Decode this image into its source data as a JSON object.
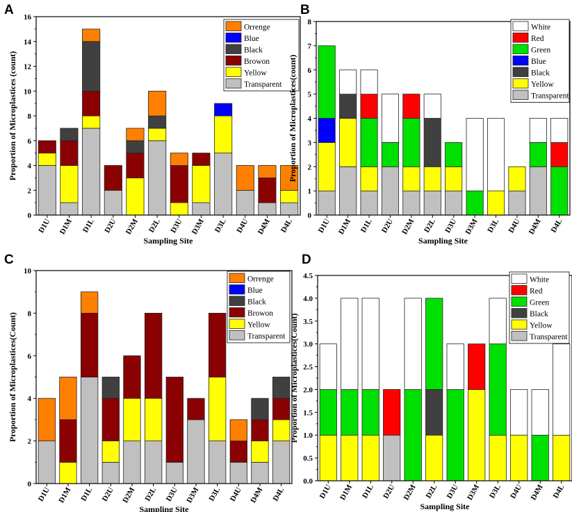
{
  "chart_data": [
    {
      "panel": "A",
      "type": "bar",
      "stacked": true,
      "title": "",
      "xlabel": "Sampling Site",
      "ylabel": "Proportion of Microplastices (count)",
      "ylim": [
        0,
        16
      ],
      "yticks": [
        "0",
        "2",
        "4",
        "6",
        "8",
        "10",
        "12",
        "14",
        "16"
      ],
      "categories": [
        "D1U",
        "D1M",
        "D1L",
        "D2U",
        "D2M",
        "D2L",
        "D3U",
        "D3M",
        "D3L",
        "D4U",
        "D4M",
        "D4L"
      ],
      "legend_position": "top-right",
      "series": [
        {
          "name": "Transparent",
          "color": "#c0c0c0",
          "values": [
            4,
            1,
            7,
            2,
            0,
            6,
            0,
            1,
            5,
            2,
            1,
            1
          ]
        },
        {
          "name": "Yellow",
          "color": "#ffff00",
          "values": [
            1,
            3,
            1,
            0,
            3,
            1,
            1,
            3,
            3,
            0,
            0,
            1
          ]
        },
        {
          "name": "Browon",
          "color": "#8b0000",
          "values": [
            1,
            2,
            2,
            2,
            2,
            0,
            3,
            1,
            0,
            0,
            2,
            0
          ]
        },
        {
          "name": "Black",
          "color": "#404040",
          "values": [
            0,
            1,
            4,
            0,
            1,
            1,
            0,
            0,
            0,
            0,
            0,
            0
          ]
        },
        {
          "name": "Blue",
          "color": "#0000ff",
          "values": [
            0,
            0,
            0,
            0,
            0,
            0,
            0,
            0,
            1,
            0,
            0,
            0
          ]
        },
        {
          "name": "Orrenge",
          "color": "#ff8000",
          "values": [
            0,
            0,
            1,
            0,
            1,
            2,
            1,
            0,
            0,
            2,
            1,
            2
          ]
        }
      ]
    },
    {
      "panel": "B",
      "type": "bar",
      "stacked": true,
      "title": "",
      "xlabel": "Sampling Site",
      "ylabel": "Proportion of Microplastices(count)",
      "ylim": [
        0,
        8
      ],
      "yticks": [
        "0",
        "1",
        "2",
        "3",
        "4",
        "5",
        "6",
        "7",
        "8"
      ],
      "categories": [
        "D1U",
        "D1M",
        "D1L",
        "D2U",
        "D2M",
        "D2L",
        "D3U",
        "D3M",
        "D3L",
        "D4U",
        "D4M",
        "D4L"
      ],
      "legend_position": "top-right",
      "series": [
        {
          "name": "Transparent",
          "color": "#c0c0c0",
          "values": [
            1,
            2,
            1,
            2,
            1,
            1,
            1,
            0,
            0,
            1,
            2,
            0
          ]
        },
        {
          "name": "Yellow",
          "color": "#ffff00",
          "values": [
            2,
            2,
            1,
            0,
            1,
            1,
            1,
            0,
            1,
            1,
            0,
            0
          ]
        },
        {
          "name": "Black",
          "color": "#404040",
          "values": [
            0,
            1,
            0,
            0,
            0,
            2,
            0,
            0,
            0,
            0,
            0,
            0
          ]
        },
        {
          "name": "Blue",
          "color": "#0000ff",
          "values": [
            1,
            0,
            0,
            0,
            0,
            0,
            0,
            0,
            0,
            0,
            0,
            0
          ]
        },
        {
          "name": "Green",
          "color": "#00e000",
          "values": [
            3,
            0,
            2,
            1,
            2,
            0,
            1,
            1,
            0,
            0,
            1,
            2
          ]
        },
        {
          "name": "Red",
          "color": "#ff0000",
          "values": [
            0,
            0,
            1,
            0,
            1,
            0,
            0,
            0,
            0,
            0,
            0,
            1
          ]
        },
        {
          "name": "White",
          "color": "#ffffff",
          "values": [
            0,
            1,
            1,
            2,
            0,
            1,
            0,
            3,
            3,
            0,
            1,
            1
          ]
        }
      ]
    },
    {
      "panel": "C",
      "type": "bar",
      "stacked": true,
      "title": "",
      "xlabel": "Sampling Site",
      "ylabel": "Proportion of Microplastices(Count)",
      "ylim": [
        0,
        10
      ],
      "yticks": [
        "0",
        "2",
        "4",
        "6",
        "8",
        "10"
      ],
      "categories": [
        "D1U",
        "D1M",
        "D1L",
        "D2U",
        "D2M",
        "D2L",
        "D3U",
        "D3M",
        "D3L",
        "D4U",
        "D4M",
        "D4L"
      ],
      "legend_position": "top-right",
      "series": [
        {
          "name": "Transparent",
          "color": "#c0c0c0",
          "values": [
            2,
            0,
            5,
            1,
            2,
            2,
            1,
            3,
            2,
            1,
            1,
            2
          ]
        },
        {
          "name": "Yellow",
          "color": "#ffff00",
          "values": [
            0,
            1,
            0,
            1,
            2,
            2,
            0,
            0,
            3,
            0,
            1,
            1
          ]
        },
        {
          "name": "Browon",
          "color": "#8b0000",
          "values": [
            0,
            2,
            3,
            2,
            2,
            4,
            4,
            1,
            3,
            1,
            1,
            1
          ]
        },
        {
          "name": "Black",
          "color": "#404040",
          "values": [
            0,
            0,
            0,
            1,
            0,
            0,
            0,
            0,
            0,
            0,
            1,
            1
          ]
        },
        {
          "name": "Blue",
          "color": "#0000ff",
          "values": [
            0,
            0,
            0,
            0,
            0,
            0,
            0,
            0,
            0,
            0,
            0,
            0
          ]
        },
        {
          "name": "Orrenge",
          "color": "#ff8000",
          "values": [
            2,
            2,
            1,
            0,
            0,
            0,
            0,
            0,
            0,
            1,
            0,
            0
          ]
        }
      ]
    },
    {
      "panel": "D",
      "type": "bar",
      "stacked": true,
      "title": "",
      "xlabel": "Sampling Site",
      "ylabel": "Proportion of Microplastices(Count)",
      "ylim": [
        0,
        4.5
      ],
      "yticks": [
        "0.0",
        "0.5",
        "1.0",
        "1.5",
        "2.0",
        "2.5",
        "3.0",
        "3.5",
        "4.0",
        "4.5"
      ],
      "categories": [
        "D1U",
        "D1M",
        "D1L",
        "D2U",
        "D2M",
        "D2L",
        "D3U",
        "D3M",
        "D3L",
        "D4U",
        "D4M",
        "D4L"
      ],
      "legend_position": "top-right",
      "series": [
        {
          "name": "Transparent",
          "color": "#c0c0c0",
          "values": [
            0,
            0,
            0,
            1,
            0,
            0,
            0,
            0,
            0,
            0,
            0,
            0
          ]
        },
        {
          "name": "Yellow",
          "color": "#ffff00",
          "values": [
            1,
            1,
            1,
            0,
            0,
            1,
            0,
            2,
            1,
            1,
            0,
            1
          ]
        },
        {
          "name": "Black",
          "color": "#404040",
          "values": [
            0,
            0,
            0,
            0,
            0,
            1,
            0,
            0,
            0,
            0,
            0,
            0
          ]
        },
        {
          "name": "Green",
          "color": "#00e000",
          "values": [
            1,
            1,
            1,
            0,
            2,
            2,
            2,
            0,
            2,
            0,
            1,
            0
          ]
        },
        {
          "name": "Red",
          "color": "#ff0000",
          "values": [
            0,
            0,
            0,
            1,
            0,
            0,
            0,
            1,
            0,
            0,
            0,
            0
          ]
        },
        {
          "name": "White",
          "color": "#ffffff",
          "values": [
            1,
            2,
            2,
            0,
            2,
            0,
            1,
            0,
            1,
            1,
            1,
            2
          ]
        }
      ]
    }
  ]
}
